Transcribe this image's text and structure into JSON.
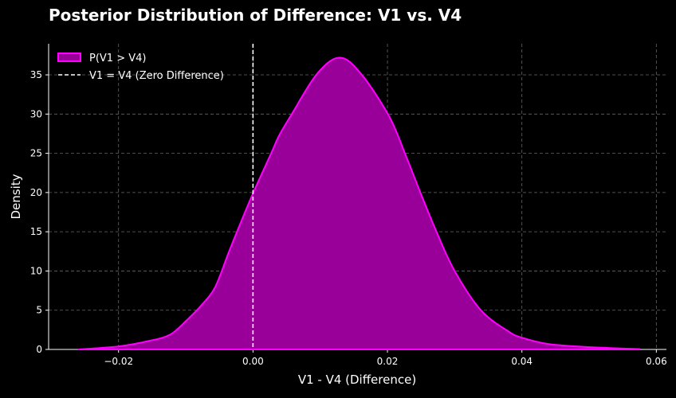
{
  "chart_data": {
    "type": "area",
    "title": "Posterior Distribution of Difference: V1 vs. V4",
    "xlabel": "V1 - V4 (Difference)",
    "ylabel": "Density",
    "xlim": [
      -0.0304,
      0.0615
    ],
    "ylim": [
      0,
      38.96
    ],
    "xticks": [
      -0.02,
      0.0,
      0.02,
      0.04,
      0.06
    ],
    "xtick_labels": [
      "−0.02",
      "0.00",
      "0.02",
      "0.04",
      "0.06"
    ],
    "yticks": [
      0,
      5,
      10,
      15,
      20,
      25,
      30,
      35
    ],
    "ytick_labels": [
      "0",
      "5",
      "10",
      "15",
      "20",
      "25",
      "30",
      "35"
    ],
    "grid": true,
    "legend_position": "top-left",
    "series": [
      {
        "name": "P(V1 > V4)",
        "fill_color": "#990099",
        "line_color": "#ff00ff",
        "x": [
          -0.0261,
          -0.0199,
          -0.0154,
          -0.0123,
          -0.01,
          -0.0076,
          -0.0056,
          -0.0036,
          -0.002,
          0.0,
          0.0027,
          0.0039,
          0.0057,
          0.0095,
          0.0129,
          0.0161,
          0.0202,
          0.0226,
          0.0249,
          0.0273,
          0.03,
          0.0339,
          0.038,
          0.04,
          0.0439,
          0.0499,
          0.0576
        ],
        "y": [
          0.0,
          0.4,
          1.1,
          1.9,
          3.6,
          5.7,
          8.0,
          12.4,
          15.8,
          19.9,
          25.0,
          27.3,
          29.9,
          35.1,
          37.2,
          35.1,
          29.8,
          25.0,
          20.0,
          15.0,
          10.0,
          5.0,
          2.3,
          1.5,
          0.7,
          0.3,
          0.05
        ]
      }
    ],
    "reference_line": {
      "name": "V1 = V4 (Zero Difference)",
      "x": 0.0,
      "color": "#ffffff",
      "style": "dashed"
    }
  }
}
